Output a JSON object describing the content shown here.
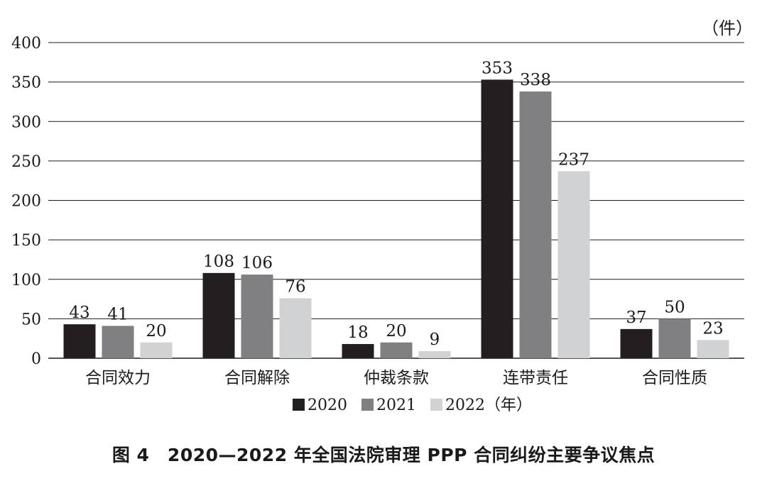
{
  "chart_data": {
    "type": "bar",
    "title": "图 4　2020—2022 年全国法院审理 PPP 合同纠纷主要争议焦点",
    "unit": "（件）",
    "categories": [
      "合同效力",
      "合同解除",
      "仲裁条款",
      "连带责任",
      "合同性质"
    ],
    "series": [
      {
        "name": "2020",
        "color": "#231f20",
        "values": [
          43,
          108,
          18,
          353,
          37
        ]
      },
      {
        "name": "2021",
        "color": "#808083",
        "values": [
          41,
          106,
          20,
          338,
          50
        ]
      },
      {
        "name": "2022（年）",
        "color": "#d1d2d4",
        "values": [
          20,
          76,
          9,
          237,
          23
        ]
      }
    ],
    "ylim": [
      0,
      400
    ],
    "yticks": [
      0,
      50,
      100,
      150,
      200,
      250,
      300,
      350,
      400
    ],
    "grid": true,
    "legend_position": "bottom"
  }
}
